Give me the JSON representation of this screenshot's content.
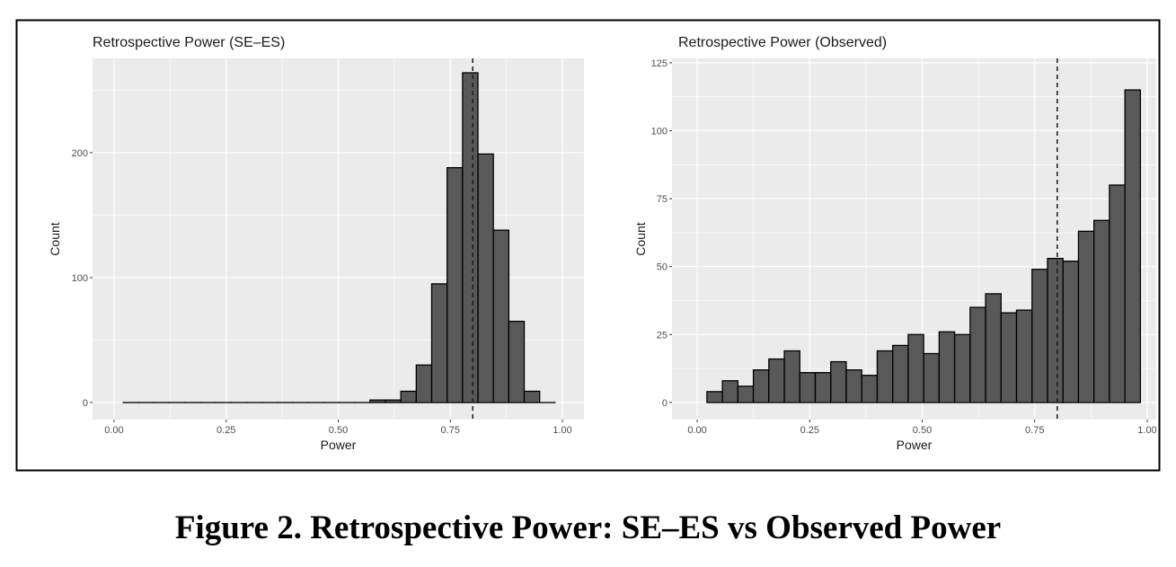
{
  "caption": "Figure 2. Retrospective Power: SE–ES vs Observed Power",
  "colors": {
    "panel": "#ebebeb",
    "bar_fill": "#595959",
    "bar_stroke": "#000000",
    "grid": "#ffffff"
  },
  "chart_data": [
    {
      "type": "bar",
      "title": "Retrospective Power (SE–ES)",
      "xlabel": "Power",
      "ylabel": "Count",
      "xlim": [
        -0.048,
        1.048
      ],
      "ylim": [
        -13.7,
        275.5
      ],
      "xticks": [
        0,
        0.25,
        0.5,
        0.75,
        1
      ],
      "xtick_labels": [
        "0.00",
        "0.25",
        "0.50",
        "0.75",
        "1.00"
      ],
      "yticks": [
        0,
        100,
        200
      ],
      "ytick_labels": [
        "0",
        "100",
        "200"
      ],
      "yminor": [
        50,
        150,
        250
      ],
      "bin_start": 0.0204,
      "bin_width": 0.0344,
      "values": [
        0,
        0,
        0,
        0,
        0,
        0,
        0,
        0,
        0,
        0,
        0,
        0,
        0,
        0,
        0,
        0,
        2,
        2,
        9,
        30,
        95,
        188,
        264,
        199,
        138,
        65,
        9,
        0
      ],
      "vline": 0.8,
      "grid": true
    },
    {
      "type": "bar",
      "title": "Retrospective Power (Observed)",
      "xlabel": "Power",
      "ylabel": "Count",
      "xlim": [
        -0.056,
        1.02
      ],
      "ylim": [
        -6.3,
        126.6
      ],
      "xticks": [
        0,
        0.25,
        0.5,
        0.75,
        1
      ],
      "xtick_labels": [
        "0.00",
        "0.25",
        "0.50",
        "0.75",
        "1.00"
      ],
      "yticks": [
        0,
        25,
        50,
        75,
        100,
        125
      ],
      "ytick_labels": [
        "0",
        "25",
        "50",
        "75",
        "100",
        "125"
      ],
      "yminor": [
        12.5,
        37.5,
        62.5,
        87.5,
        112.5
      ],
      "bin_start": 0.0216,
      "bin_width": 0.0344,
      "values": [
        4,
        8,
        6,
        12,
        16,
        19,
        11,
        11,
        15,
        12,
        10,
        19,
        21,
        25,
        18,
        26,
        25,
        35,
        40,
        33,
        34,
        49,
        53,
        52,
        63,
        67,
        80,
        115
      ],
      "vline": 0.8,
      "grid": true
    }
  ]
}
